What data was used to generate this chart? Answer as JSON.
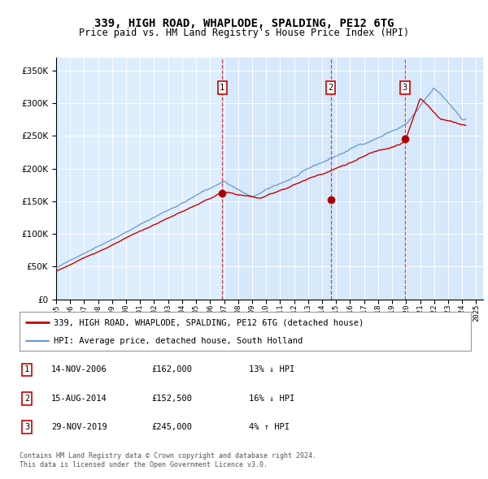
{
  "title": "339, HIGH ROAD, WHAPLODE, SPALDING, PE12 6TG",
  "subtitle": "Price paid vs. HM Land Registry's House Price Index (HPI)",
  "xlim_start": 1995.0,
  "xlim_end": 2025.5,
  "ylim": [
    0,
    370000
  ],
  "yticks": [
    0,
    50000,
    100000,
    150000,
    200000,
    250000,
    300000,
    350000
  ],
  "plot_bg_color": "#ddeeff",
  "shade_color": "#cce4f7",
  "grid_color": "#ffffff",
  "sale_dates": [
    2006.87,
    2014.62,
    2019.91
  ],
  "sale_prices": [
    162000,
    152500,
    245000
  ],
  "sale_labels": [
    "1",
    "2",
    "3"
  ],
  "legend_line1": "339, HIGH ROAD, WHAPLODE, SPALDING, PE12 6TG (detached house)",
  "legend_line2": "HPI: Average price, detached house, South Holland",
  "table_entries": [
    {
      "num": "1",
      "date": "14-NOV-2006",
      "price": "£162,000",
      "change": "13% ↓ HPI"
    },
    {
      "num": "2",
      "date": "15-AUG-2014",
      "price": "£152,500",
      "change": "16% ↓ HPI"
    },
    {
      "num": "3",
      "date": "29-NOV-2019",
      "price": "£245,000",
      "change": "4% ↑ HPI"
    }
  ],
  "footnote1": "Contains HM Land Registry data © Crown copyright and database right 2024.",
  "footnote2": "This data is licensed under the Open Government Licence v3.0.",
  "red_color": "#cc0000",
  "blue_color": "#6699cc",
  "xticks": [
    1995,
    1996,
    1997,
    1998,
    1999,
    2000,
    2001,
    2002,
    2003,
    2004,
    2005,
    2006,
    2007,
    2008,
    2009,
    2010,
    2011,
    2012,
    2013,
    2014,
    2015,
    2016,
    2017,
    2018,
    2019,
    2020,
    2021,
    2022,
    2023,
    2024,
    2025
  ]
}
